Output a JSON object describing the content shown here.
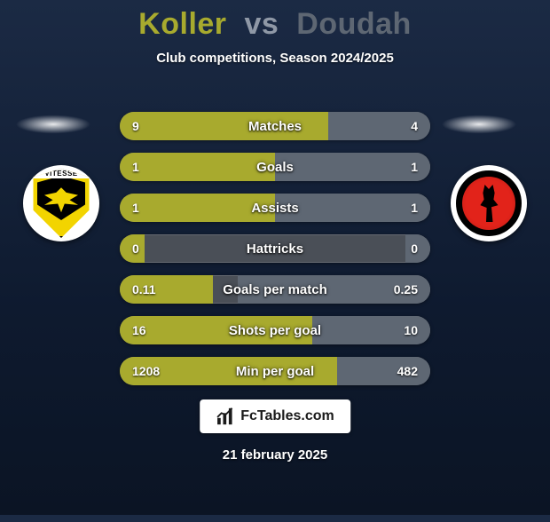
{
  "title_left": "Koller",
  "title_vs": "vs",
  "title_right": "Doudah",
  "title_color_left": "#a8aa2e",
  "title_color_vs": "#8f98a6",
  "title_color_right": "#5e6773",
  "subtitle": "Club competitions, Season 2024/2025",
  "color_left": "#a8aa2e",
  "color_right": "#5e6773",
  "track_color": "#4a4f57",
  "crest_left_label": "VITESSE",
  "rows": [
    {
      "label": "Matches",
      "left": "9",
      "right": "4",
      "lw": 67,
      "rw": 33
    },
    {
      "label": "Goals",
      "left": "1",
      "right": "1",
      "lw": 50,
      "rw": 50
    },
    {
      "label": "Assists",
      "left": "1",
      "right": "1",
      "lw": 50,
      "rw": 50
    },
    {
      "label": "Hattricks",
      "left": "0",
      "right": "0",
      "lw": 8,
      "rw": 8
    },
    {
      "label": "Goals per match",
      "left": "0.11",
      "right": "0.25",
      "lw": 30,
      "rw": 62
    },
    {
      "label": "Shots per goal",
      "left": "16",
      "right": "10",
      "lw": 62,
      "rw": 38
    },
    {
      "label": "Min per goal",
      "left": "1208",
      "right": "482",
      "lw": 70,
      "rw": 30
    }
  ],
  "footer_brand": "FcTables.com",
  "date": "21 february 2025"
}
